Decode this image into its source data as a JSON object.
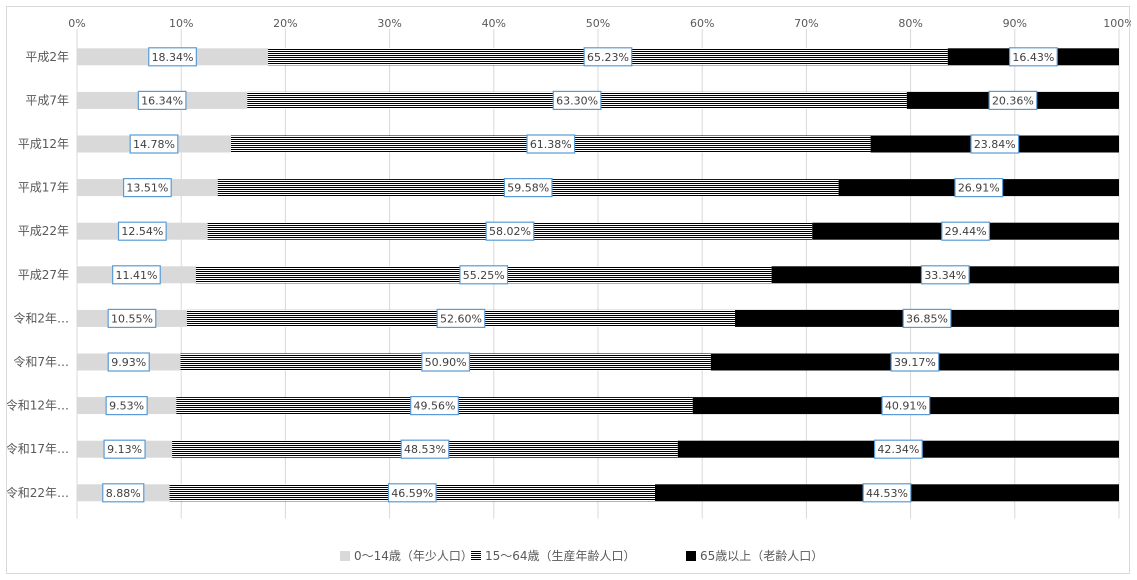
{
  "chart_data": {
    "type": "bar",
    "orientation": "horizontal",
    "stacked": "percent",
    "categories": [
      "平成2年",
      "平成7年",
      "平成12年",
      "平成17年",
      "平成22年",
      "平成27年",
      "令和2年…",
      "令和7年…",
      "令和12年…",
      "令和17年…",
      "令和22年…"
    ],
    "series": [
      {
        "name": "0～14歳（年少人口）",
        "fill": "light-gray",
        "values": [
          18.34,
          16.34,
          14.78,
          13.51,
          12.54,
          11.41,
          10.55,
          9.93,
          9.53,
          9.13,
          8.88
        ],
        "labels": [
          "18.34%",
          "16.34%",
          "14.78%",
          "13.51%",
          "12.54%",
          "11.41%",
          "10.55%",
          "9.93%",
          "9.53%",
          "9.13%",
          "8.88%"
        ]
      },
      {
        "name": "15～64歳（生産年齢人口）",
        "fill": "horizontal-stripes",
        "values": [
          65.23,
          63.3,
          61.38,
          59.58,
          58.02,
          55.25,
          52.6,
          50.9,
          49.56,
          48.53,
          46.59
        ],
        "labels": [
          "65.23%",
          "63.30%",
          "61.38%",
          "59.58%",
          "58.02%",
          "55.25%",
          "52.60%",
          "50.90%",
          "49.56%",
          "48.53%",
          "46.59%"
        ]
      },
      {
        "name": "65歳以上（老齢人口）",
        "fill": "black",
        "values": [
          16.43,
          20.36,
          23.84,
          26.91,
          29.44,
          33.34,
          36.85,
          39.17,
          40.91,
          42.34,
          44.53
        ],
        "labels": [
          "16.43%",
          "20.36%",
          "23.84%",
          "26.91%",
          "29.44%",
          "33.34%",
          "36.85%",
          "39.17%",
          "40.91%",
          "42.34%",
          "44.53%"
        ]
      }
    ],
    "x_ticks": [
      "0%",
      "10%",
      "20%",
      "30%",
      "40%",
      "50%",
      "60%",
      "70%",
      "80%",
      "90%",
      "100%"
    ],
    "xlim": [
      0,
      100
    ],
    "x_axis_position": "top",
    "grid": true,
    "legend_position": "bottom",
    "title": "",
    "xlabel": "",
    "ylabel": "",
    "colors": {
      "young": "#d9d9d9",
      "working_stripe_dark": "#000000",
      "working_stripe_light": "#ffffff",
      "elderly": "#000000",
      "label_border": "#5b9bd5",
      "gridline": "#d9d9d9",
      "axis_text": "#595959"
    }
  }
}
